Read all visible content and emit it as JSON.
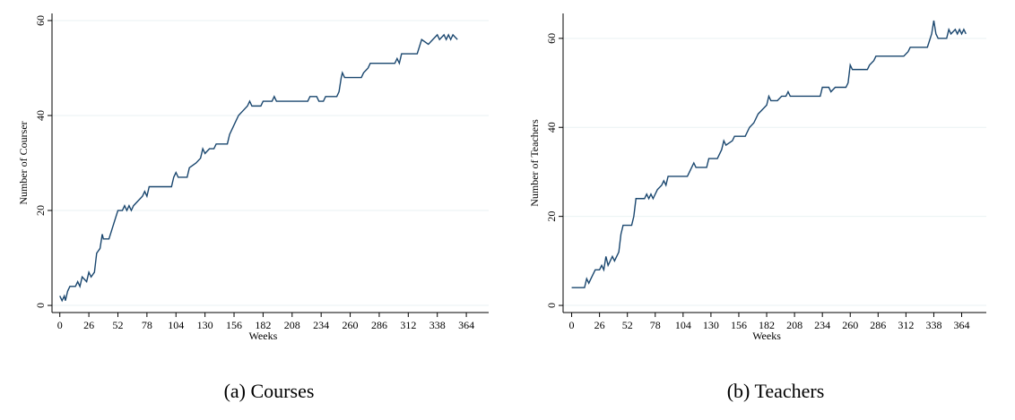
{
  "chart_data": [
    {
      "type": "line",
      "caption": "(a) Courses",
      "xlabel": "Weeks",
      "ylabel": "Number of Courser",
      "xlim": [
        -7,
        384
      ],
      "ylim": [
        -1.5,
        61.5
      ],
      "xticks": [
        0,
        26,
        52,
        78,
        104,
        130,
        156,
        182,
        208,
        234,
        260,
        286,
        312,
        338,
        364
      ],
      "yticks": [
        0,
        20,
        40,
        60
      ],
      "grid": true,
      "series": [
        {
          "color": "#1a476f",
          "x": [
            0,
            2,
            4,
            5,
            7,
            9,
            14,
            16,
            18,
            20,
            24,
            26,
            28,
            31,
            33,
            36,
            38,
            39,
            44,
            48,
            52,
            56,
            58,
            60,
            62,
            64,
            66,
            70,
            74,
            76,
            78,
            80,
            100,
            102,
            104,
            106,
            114,
            116,
            122,
            126,
            128,
            130,
            134,
            138,
            140,
            150,
            152,
            156,
            160,
            164,
            168,
            170,
            172,
            180,
            182,
            190,
            192,
            194,
            222,
            224,
            230,
            232,
            236,
            238,
            248,
            250,
            252,
            253,
            255,
            270,
            272,
            276,
            278,
            300,
            302,
            304,
            306,
            320,
            324,
            330,
            334,
            338,
            340,
            344,
            346,
            348,
            350,
            352,
            356
          ],
          "values": [
            2,
            1,
            2,
            1,
            3,
            4,
            4,
            5,
            4,
            6,
            5,
            7,
            6,
            7,
            11,
            12,
            15,
            14,
            14,
            17,
            20,
            20,
            21,
            20,
            21,
            20,
            21,
            22,
            23,
            24,
            23,
            25,
            25,
            27,
            28,
            27,
            27,
            29,
            30,
            31,
            33,
            32,
            33,
            33,
            34,
            34,
            36,
            38,
            40,
            41,
            42,
            43,
            42,
            42,
            43,
            43,
            44,
            43,
            43,
            44,
            44,
            43,
            43,
            44,
            44,
            45,
            48,
            49,
            48,
            48,
            49,
            50,
            51,
            51,
            52,
            51,
            53,
            53,
            56,
            55,
            56,
            57,
            56,
            57,
            56,
            57,
            56,
            57,
            56
          ]
        }
      ]
    },
    {
      "type": "line",
      "caption": "(b) Teachers",
      "xlabel": "Weeks",
      "ylabel": "Number of Teachers",
      "xlim": [
        -8,
        387
      ],
      "ylim": [
        -1.6,
        65.6
      ],
      "xticks": [
        0,
        26,
        52,
        78,
        104,
        130,
        156,
        182,
        208,
        234,
        260,
        286,
        312,
        338,
        364
      ],
      "yticks": [
        0,
        20,
        40,
        60
      ],
      "grid": true,
      "series": [
        {
          "color": "#1a476f",
          "x": [
            0,
            12,
            14,
            16,
            18,
            22,
            26,
            28,
            30,
            32,
            34,
            36,
            38,
            40,
            44,
            46,
            48,
            56,
            58,
            60,
            68,
            70,
            72,
            74,
            76,
            80,
            84,
            86,
            88,
            90,
            108,
            110,
            114,
            116,
            126,
            128,
            136,
            140,
            142,
            144,
            150,
            152,
            162,
            166,
            170,
            174,
            178,
            182,
            184,
            186,
            192,
            196,
            200,
            202,
            204,
            232,
            234,
            240,
            242,
            246,
            256,
            258,
            260,
            262,
            276,
            278,
            282,
            284,
            310,
            314,
            316,
            332,
            336,
            338,
            340,
            342,
            350,
            352,
            354,
            358,
            360,
            362,
            364,
            366,
            368
          ],
          "values": [
            4,
            4,
            6,
            5,
            6,
            8,
            8,
            9,
            8,
            11,
            9,
            10,
            11,
            10,
            12,
            16,
            18,
            18,
            20,
            24,
            24,
            25,
            24,
            25,
            24,
            26,
            27,
            28,
            27,
            29,
            29,
            30,
            32,
            31,
            31,
            33,
            33,
            35,
            37,
            36,
            37,
            38,
            38,
            40,
            41,
            43,
            44,
            45,
            47,
            46,
            46,
            47,
            47,
            48,
            47,
            47,
            49,
            49,
            48,
            49,
            49,
            50,
            54,
            53,
            53,
            54,
            55,
            56,
            56,
            57,
            58,
            58,
            61,
            64,
            61,
            60,
            60,
            62,
            61,
            62,
            61,
            62,
            61,
            62,
            61
          ]
        }
      ]
    }
  ]
}
